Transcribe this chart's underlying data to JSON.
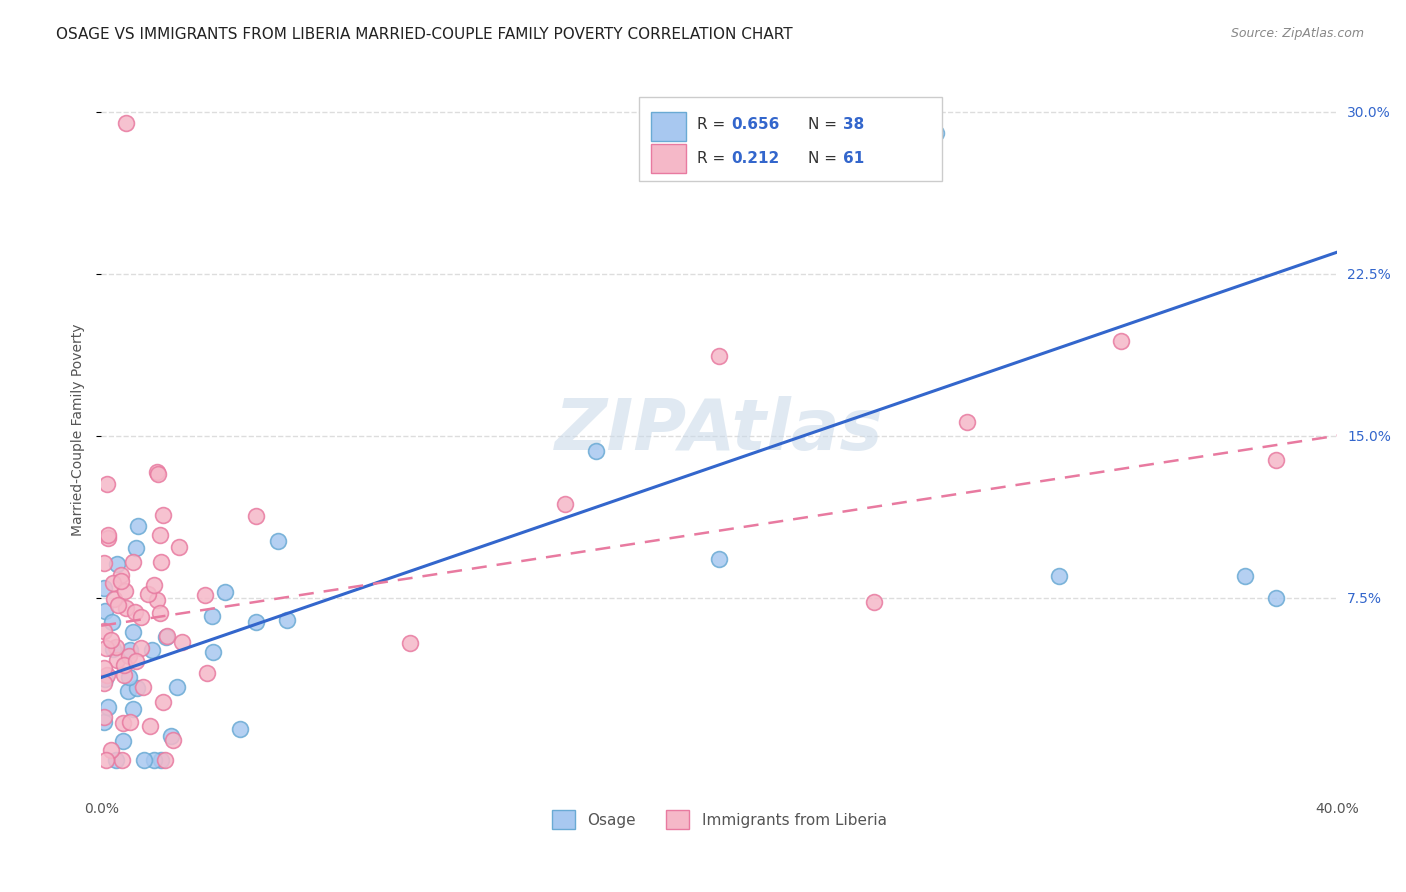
{
  "title": "OSAGE VS IMMIGRANTS FROM LIBERIA MARRIED-COUPLE FAMILY POVERTY CORRELATION CHART",
  "source": "Source: ZipAtlas.com",
  "ylabel": "Married-Couple Family Poverty",
  "xlim": [
    0.0,
    0.4
  ],
  "ylim": [
    -0.015,
    0.32
  ],
  "ytick_labels": [
    "7.5%",
    "15.0%",
    "22.5%",
    "30.0%"
  ],
  "ytick_positions": [
    0.075,
    0.15,
    0.225,
    0.3
  ],
  "watermark": "ZIPAtlas",
  "legend_r1": "0.656",
  "legend_n1": "38",
  "legend_r2": "0.212",
  "legend_n2": "61",
  "series1_label": "Osage",
  "series2_label": "Immigrants from Liberia",
  "series1_color": "#a8c8f0",
  "series2_color": "#f5b8c8",
  "series1_edge": "#6aaad4",
  "series2_edge": "#e87aa0",
  "line1_color": "#3366cc",
  "line2_color": "#e87aa0",
  "background_color": "#ffffff",
  "grid_color": "#dddddd",
  "title_fontsize": 11,
  "axis_label_fontsize": 10,
  "tick_fontsize": 10
}
